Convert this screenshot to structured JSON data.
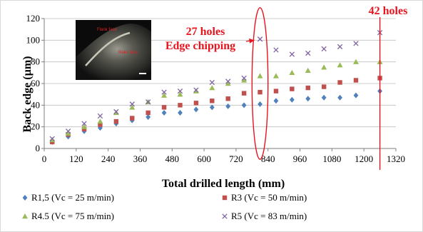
{
  "chart_data": {
    "type": "scatter",
    "xlabel": "Total drilled length (mm)",
    "ylabel": "Back edge (µm)",
    "xlim": [
      0,
      1320
    ],
    "ylim": [
      0,
      120
    ],
    "xticks": [
      0,
      120,
      240,
      360,
      480,
      600,
      720,
      840,
      960,
      1080,
      1200,
      1320
    ],
    "yticks": [
      0,
      20,
      40,
      60,
      80,
      100,
      120
    ],
    "grid": "horizontal",
    "legend_position": "bottom",
    "series": [
      {
        "name": "R1,5 (Vc = 25 m/min)",
        "marker": "diamond",
        "color": "#4f81bd",
        "x": [
          30,
          90,
          150,
          210,
          270,
          330,
          390,
          450,
          510,
          570,
          630,
          690,
          750,
          810,
          870,
          930,
          990,
          1050,
          1110,
          1170,
          1260
        ],
        "y": [
          6,
          11,
          16,
          19,
          23,
          26,
          29,
          33,
          33,
          36,
          38,
          39,
          40,
          41,
          44,
          45,
          46,
          47,
          47,
          49,
          53
        ]
      },
      {
        "name": "R3 (Vc = 50 m/min)",
        "marker": "square",
        "color": "#c0504d",
        "x": [
          30,
          90,
          150,
          210,
          270,
          330,
          390,
          450,
          510,
          570,
          630,
          690,
          750,
          810,
          870,
          930,
          990,
          1050,
          1110,
          1170,
          1260
        ],
        "y": [
          6,
          13,
          18,
          22,
          25,
          28,
          33,
          38,
          40,
          42,
          44,
          46,
          51,
          52,
          53,
          55,
          56,
          57,
          61,
          63,
          65
        ]
      },
      {
        "name": "R4.5 (Vc = 75 m/min)",
        "marker": "triangle",
        "color": "#9bbb59",
        "x": [
          30,
          90,
          150,
          210,
          270,
          330,
          390,
          450,
          510,
          570,
          630,
          690,
          750,
          810,
          870,
          930,
          990,
          1050,
          1110,
          1170,
          1260
        ],
        "y": [
          8,
          14,
          20,
          25,
          33,
          38,
          43,
          49,
          50,
          53,
          56,
          60,
          63,
          67,
          67,
          70,
          72,
          75,
          77,
          80,
          80
        ]
      },
      {
        "name": "R5 (Vc = 83 m/min)",
        "marker": "x",
        "color": "#8064a2",
        "x": [
          30,
          90,
          150,
          210,
          270,
          330,
          390,
          450,
          510,
          570,
          630,
          690,
          750,
          810,
          870,
          930,
          990,
          1050,
          1110,
          1170,
          1260
        ],
        "y": [
          9,
          16,
          23,
          30,
          34,
          41,
          43,
          52,
          53,
          54,
          61,
          62,
          65,
          101,
          91,
          87,
          88,
          92,
          94,
          97,
          107
        ]
      }
    ],
    "annotations": {
      "holes27": "27 holes",
      "chipping": "Edge chipping",
      "holes42": "42 holes",
      "flank_face": "Flank face",
      "rake_face": "Rake face",
      "color": "#e8141e",
      "ellipse_center_x": 810,
      "ellipse_center_y": 60,
      "ellipse_half_width_x": 30,
      "ellipse_half_height_y": 70,
      "arrow_target": {
        "x": 810,
        "y": 100
      },
      "vertical_line_x": 1260
    }
  }
}
